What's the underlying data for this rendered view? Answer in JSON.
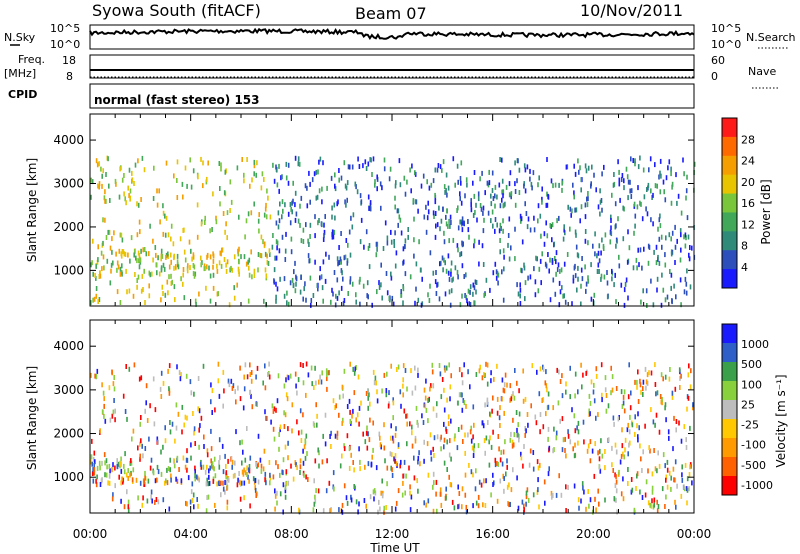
{
  "header": {
    "station": "Syowa South (fitACF)",
    "beam": "Beam 07",
    "date": "10/Nov/2011"
  },
  "params": {
    "nsky_label": "N.Sky",
    "nsearch_label": "N.Search",
    "freq_label": "Freq.",
    "freq_unit": "[MHz]",
    "nave_label": "Nave",
    "cpid_label": "CPID",
    "cpid_text": "normal (fast stereo) 153",
    "noise_ticks": [
      "10^5",
      "10^0"
    ],
    "noise_ticks_right": [
      "10^5",
      "10^0"
    ],
    "freq_ticks": [
      "18",
      "8"
    ],
    "nave_ticks": [
      "60",
      "0"
    ]
  },
  "colors": {
    "power": [
      "#1a1aff",
      "#2d4fbb",
      "#2f8a7a",
      "#41a85a",
      "#79c63a",
      "#e8c400",
      "#f59e00",
      "#ff6a00",
      "#ff1a1a"
    ],
    "velocity": [
      "#ff0000",
      "#ff6000",
      "#ff9a00",
      "#ffc800",
      "#bdbdbd",
      "#88d03c",
      "#3aa04a",
      "#2e5fc8",
      "#1a1aff"
    ]
  },
  "chart_data": [
    {
      "type": "heatmap",
      "name": "power",
      "xlabel": "",
      "ylabel": "Slant Range [km]",
      "ylim": [
        180,
        4600
      ],
      "yticks": [
        1000,
        2000,
        3000,
        4000
      ],
      "colorbar": {
        "label": "Power [dB]",
        "ticks": [
          "28",
          "24",
          "20",
          "16",
          "12",
          "8",
          "4"
        ],
        "range": [
          0,
          30
        ]
      }
    },
    {
      "type": "heatmap",
      "name": "velocity",
      "xlabel": "Time UT",
      "ylabel": "Slant Range [km]",
      "ylim": [
        180,
        4600
      ],
      "yticks": [
        1000,
        2000,
        3000,
        4000
      ],
      "colorbar": {
        "label": "Velocity [m s⁻¹]",
        "ticks": [
          "1000",
          "500",
          "100",
          "25",
          "-25",
          "-100",
          "-500",
          "-1000"
        ]
      }
    }
  ],
  "time_axis": {
    "label": "Time UT",
    "ticks": [
      "00:00",
      "04:00",
      "08:00",
      "12:00",
      "16:00",
      "20:00",
      "00:00"
    ]
  }
}
